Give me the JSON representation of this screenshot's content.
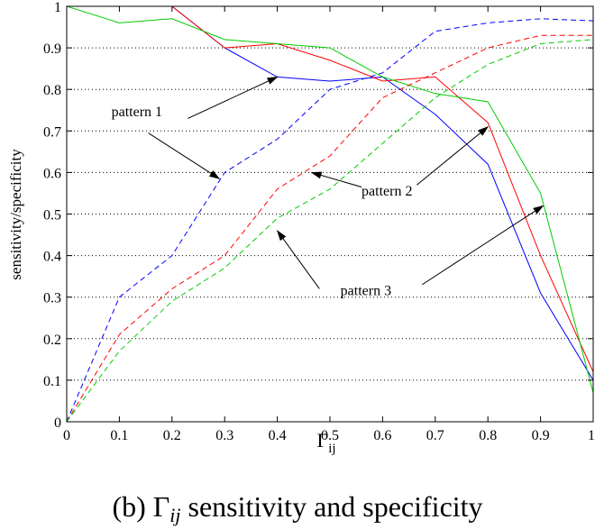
{
  "chart_data": {
    "type": "line",
    "ylabel": "sensitivity/specificity",
    "xlabel_main": "Γ",
    "xlabel_sub": "ij",
    "caption_prefix": "(b) ",
    "caption_gamma": "Γ",
    "caption_sub": "ij",
    "caption_suffix": " sensitivity and specificity",
    "xlim": [
      0,
      1
    ],
    "ylim": [
      0,
      1
    ],
    "x_ticks": [
      0,
      0.1,
      0.2,
      0.3,
      0.4,
      0.5,
      0.6,
      0.7,
      0.8,
      0.9,
      1
    ],
    "x_tick_labels": [
      "0",
      "0.1",
      "0.2",
      "0.3",
      "0.4",
      "0.5",
      "0.6",
      "0.7",
      "0.8",
      "0.9",
      "1"
    ],
    "y_ticks": [
      0,
      0.1,
      0.2,
      0.3,
      0.4,
      0.5,
      0.6,
      0.7,
      0.8,
      0.9,
      1
    ],
    "y_tick_labels": [
      "0",
      "0.1",
      "0.2",
      "0.3",
      "0.4",
      "0.5",
      "0.6",
      "0.7",
      "0.8",
      "0.9",
      "1"
    ],
    "grid": "horizontal-dotted",
    "x": [
      0,
      0.1,
      0.2,
      0.3,
      0.4,
      0.5,
      0.6,
      0.7,
      0.8,
      0.9,
      1
    ],
    "series": [
      {
        "color": "#0000ff",
        "dash": "solid",
        "values": [
          1.0,
          1.0,
          1.0,
          0.9,
          0.83,
          0.82,
          0.83,
          0.74,
          0.62,
          0.31,
          0.1
        ]
      },
      {
        "color": "#ff0000",
        "dash": "solid",
        "values": [
          1.0,
          1.0,
          1.0,
          0.9,
          0.91,
          0.87,
          0.82,
          0.83,
          0.72,
          0.4,
          0.12
        ]
      },
      {
        "color": "#00cc00",
        "dash": "solid",
        "values": [
          1.0,
          0.96,
          0.97,
          0.92,
          0.91,
          0.9,
          0.83,
          0.79,
          0.77,
          0.55,
          0.07
        ]
      },
      {
        "color": "#0000ff",
        "dash": "dashed",
        "values": [
          0.0,
          0.3,
          0.4,
          0.6,
          0.68,
          0.8,
          0.84,
          0.94,
          0.96,
          0.97,
          0.965
        ]
      },
      {
        "color": "#ff0000",
        "dash": "dashed",
        "values": [
          0.0,
          0.21,
          0.32,
          0.4,
          0.56,
          0.64,
          0.78,
          0.84,
          0.9,
          0.93,
          0.93
        ]
      },
      {
        "color": "#00cc00",
        "dash": "dashed",
        "values": [
          0.0,
          0.17,
          0.29,
          0.37,
          0.49,
          0.56,
          0.67,
          0.78,
          0.86,
          0.91,
          0.92
        ]
      }
    ],
    "annotations": [
      {
        "text": "pattern 1",
        "label_at": [
          0.085,
          0.735
        ],
        "arrows": [
          {
            "from": [
              0.23,
              0.73
            ],
            "to": [
              0.4,
              0.83
            ]
          },
          {
            "from": [
              0.155,
              0.695
            ],
            "to": [
              0.29,
              0.585
            ]
          }
        ]
      },
      {
        "text": "pattern 2",
        "label_at": [
          0.56,
          0.545
        ],
        "arrows": [
          {
            "from": [
              0.665,
              0.57
            ],
            "to": [
              0.8,
              0.71
            ]
          },
          {
            "from": [
              0.56,
              0.565
            ],
            "to": [
              0.465,
              0.6
            ]
          }
        ]
      },
      {
        "text": "pattern 3",
        "label_at": [
          0.52,
          0.305
        ],
        "arrows": [
          {
            "from": [
              0.48,
              0.32
            ],
            "to": [
              0.4,
              0.46
            ]
          },
          {
            "from": [
              0.675,
              0.33
            ],
            "to": [
              0.905,
              0.52
            ]
          }
        ]
      }
    ]
  }
}
